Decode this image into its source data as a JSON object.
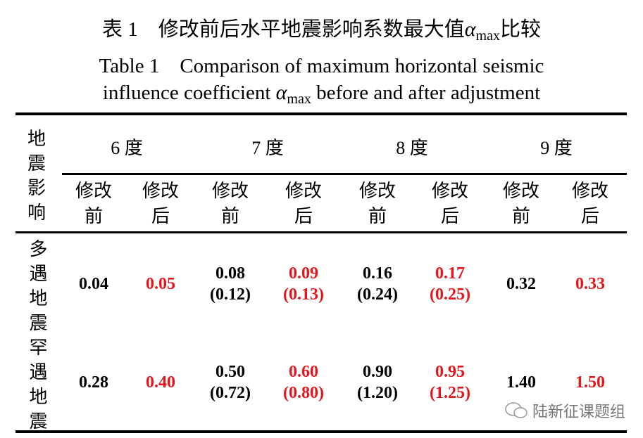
{
  "title_cn": {
    "prefix": "表 1　修改前后水平地震影响系数最大值",
    "alpha": "α",
    "sub": "max",
    "suffix": "比较"
  },
  "title_en_line1": "Table 1　Comparison of maximum horizontal seismic",
  "title_en_line2": {
    "prefix": "influence coefficient ",
    "alpha": "α",
    "sub": "max",
    "suffix": " before and after adjustment"
  },
  "header": {
    "row_label": "地震影响",
    "degrees": [
      "6 度",
      "7 度",
      "8 度",
      "9 度"
    ],
    "sub_before": [
      "修改",
      "前"
    ],
    "sub_after": [
      "修改",
      "后"
    ]
  },
  "rows": [
    {
      "label": "多遇地震",
      "values": [
        {
          "v": "0.04",
          "p": ""
        },
        {
          "v": "0.05",
          "p": ""
        },
        {
          "v": "0.08",
          "p": "(0.12)"
        },
        {
          "v": "0.09",
          "p": "(0.13)"
        },
        {
          "v": "0.16",
          "p": "(0.24)"
        },
        {
          "v": "0.17",
          "p": "(0.25)"
        },
        {
          "v": "0.32",
          "p": ""
        },
        {
          "v": "0.33",
          "p": ""
        }
      ]
    },
    {
      "label": "罕遇地震",
      "values": [
        {
          "v": "0.28",
          "p": ""
        },
        {
          "v": "0.40",
          "p": ""
        },
        {
          "v": "0.50",
          "p": "(0.72)"
        },
        {
          "v": "0.60",
          "p": "(0.80)"
        },
        {
          "v": "0.90",
          "p": "(1.20)"
        },
        {
          "v": "0.95",
          "p": "(1.25)"
        },
        {
          "v": "1.40",
          "p": ""
        },
        {
          "v": "1.50",
          "p": ""
        }
      ]
    }
  ],
  "watermark": "陆新征课题组",
  "colors": {
    "changed": "#e8141b",
    "text": "#000000"
  }
}
